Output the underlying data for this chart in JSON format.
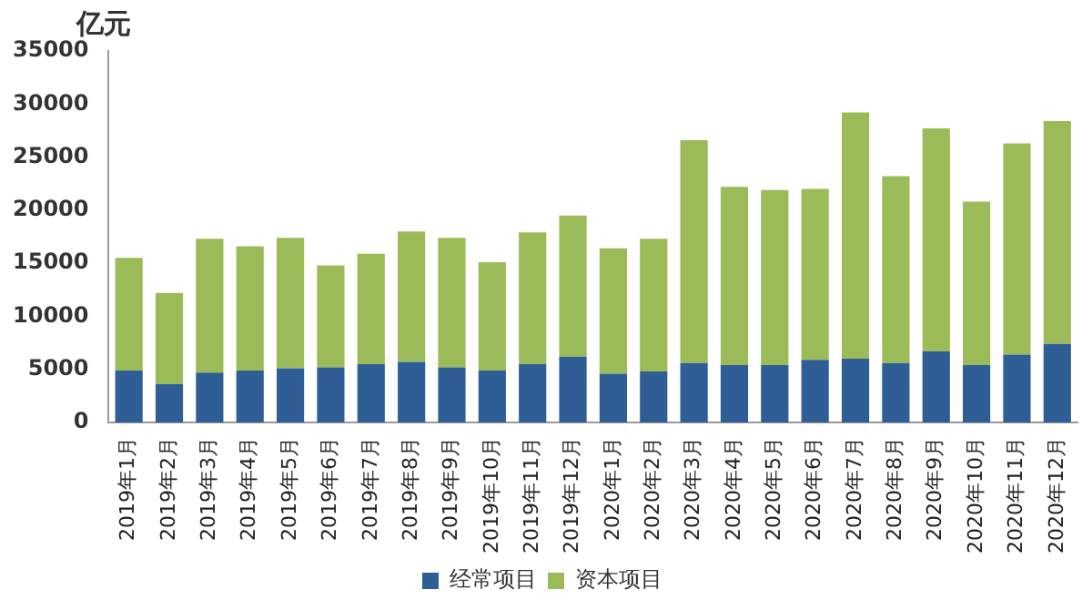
{
  "chart_data": {
    "type": "bar",
    "stacked": true,
    "ylabel": "亿元",
    "categories": [
      "2019年1月",
      "2019年2月",
      "2019年3月",
      "2019年4月",
      "2019年5月",
      "2019年6月",
      "2019年7月",
      "2019年8月",
      "2019年9月",
      "2019年10月",
      "2019年11月",
      "2019年12月",
      "2020年1月",
      "2020年2月",
      "2020年3月",
      "2020年4月",
      "2020年5月",
      "2020年6月",
      "2020年7月",
      "2020年8月",
      "2020年9月",
      "2020年10月",
      "2020年11月",
      "2020年12月"
    ],
    "series": [
      {
        "name": "经常项目",
        "color": "#2e5e95",
        "values": [
          4900,
          3600,
          4700,
          4900,
          5100,
          5200,
          5500,
          5700,
          5200,
          4900,
          5500,
          6200,
          4600,
          4800,
          5600,
          5400,
          5400,
          5900,
          6000,
          5600,
          6700,
          5400,
          6400,
          7400
        ]
      },
      {
        "name": "资本项目",
        "color": "#9bbb59",
        "values": [
          10600,
          8600,
          12600,
          11700,
          12300,
          9600,
          10400,
          12300,
          12200,
          10200,
          12400,
          13300,
          11800,
          12500,
          21000,
          16800,
          16500,
          16100,
          23200,
          17600,
          21000,
          15400,
          19900,
          21000
        ]
      }
    ],
    "ylim": [
      0,
      35000
    ],
    "yticks": [
      0,
      5000,
      10000,
      15000,
      20000,
      25000,
      30000,
      35000
    ],
    "grid": false,
    "legend": "bottom"
  }
}
